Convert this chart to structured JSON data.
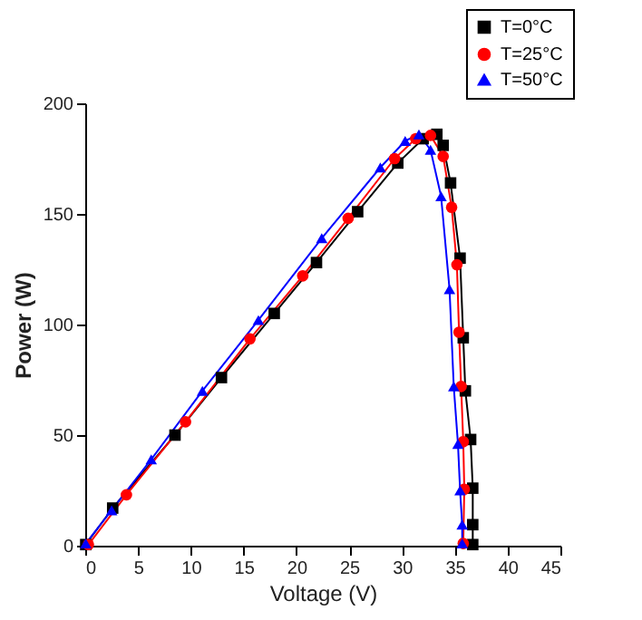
{
  "chart_data": {
    "type": "line",
    "xlabel": "Voltage (V)",
    "ylabel": "Power (W)",
    "xlim": [
      0,
      45
    ],
    "ylim": [
      0,
      200
    ],
    "xticks": [
      0,
      5,
      10,
      15,
      20,
      25,
      30,
      35,
      40,
      45
    ],
    "yticks": [
      0,
      50,
      100,
      150,
      200
    ],
    "grid": false,
    "legend": "top right",
    "line_style": "solid",
    "series": [
      {
        "name": "T=0°C",
        "color": "#000000",
        "marker": "square",
        "x": [
          0.05,
          2.6,
          8.5,
          12.9,
          17.9,
          21.9,
          25.8,
          29.6,
          32.0,
          33.3,
          33.9,
          34.6,
          35.5,
          35.8,
          36.0,
          36.5,
          36.7,
          36.7,
          36.7
        ],
        "values": [
          0.5,
          17,
          50,
          76,
          105,
          128,
          151,
          173,
          184,
          186,
          181,
          164,
          130,
          94,
          70,
          48,
          26,
          9.5,
          0.5
        ]
      },
      {
        "name": "T=25°C",
        "color": "#ff0000",
        "marker": "circle",
        "x": [
          0.3,
          3.9,
          9.5,
          15.6,
          20.6,
          24.9,
          29.3,
          31.3,
          32.7,
          33.9,
          34.7,
          35.2,
          35.4,
          35.6,
          35.8,
          35.9,
          35.8
        ],
        "values": [
          0.5,
          23,
          56,
          93.5,
          122,
          148,
          175,
          184,
          185.5,
          176,
          153,
          127,
          96.5,
          72,
          47,
          25.5,
          1
        ]
      },
      {
        "name": "T=50°C",
        "color": "#0000ff",
        "marker": "triangle",
        "x": [
          0.05,
          2.5,
          6.25,
          11.1,
          16.4,
          22.4,
          27.95,
          30.3,
          31.6,
          32.7,
          33.7,
          34.5,
          34.9,
          35.3,
          35.5,
          35.7,
          35.7
        ],
        "values": [
          1,
          16,
          39,
          70,
          102,
          139,
          171,
          183,
          186,
          179,
          158,
          116,
          72,
          46,
          25,
          9.5,
          1
        ]
      }
    ]
  }
}
